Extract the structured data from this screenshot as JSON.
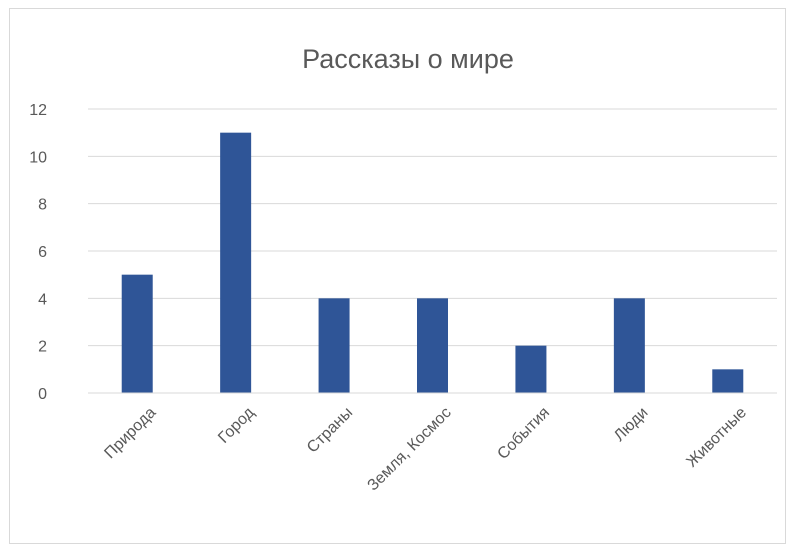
{
  "chart_data": {
    "type": "bar",
    "title": "Рассказы о мире",
    "categories": [
      "Природа",
      "Город",
      "Страны",
      "Земля, Космос",
      "События",
      "Люди",
      "Животные"
    ],
    "values": [
      5,
      11,
      4,
      4,
      2,
      4,
      1
    ],
    "ylim": [
      0,
      12
    ],
    "yticks": [
      "0",
      "2",
      "4",
      "6",
      "8",
      "10",
      "12"
    ],
    "grid": true,
    "legend": "none",
    "bar_color": "#2f5597"
  }
}
